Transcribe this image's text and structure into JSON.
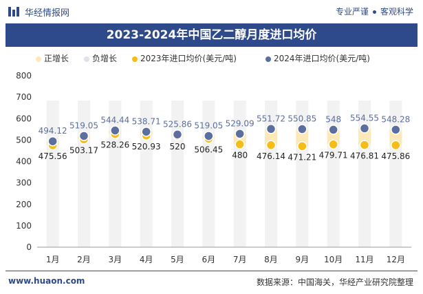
{
  "header": {
    "site_name": "华经情报网",
    "tag1": "专业严谨",
    "tag2": "客观科学"
  },
  "colors": {
    "brand": "#2e4a8a",
    "bar": "#f2f2f2",
    "pos": "#fde9b8",
    "y2023": "#f6bd16",
    "y2024": "#5b6e9e"
  },
  "chart_data": {
    "type": "line",
    "title": "2023-2024年中国乙二醇月度进口均价",
    "categories": [
      "1月",
      "2月",
      "3月",
      "4月",
      "5月",
      "6月",
      "7月",
      "8月",
      "9月",
      "10月",
      "11月",
      "12月"
    ],
    "series": [
      {
        "name": "2023年进口均价(美元/吨)",
        "values": [
          475.56,
          503.17,
          528.26,
          520.93,
          520,
          506.45,
          480,
          476.14,
          471.21,
          479.71,
          476.81,
          475.86
        ]
      },
      {
        "name": "2024年进口均价(美元/吨)",
        "values": [
          494.12,
          519.05,
          544.44,
          538.71,
          525.86,
          519.05,
          529.09,
          551.72,
          550.85,
          548,
          554.55,
          548.28
        ]
      }
    ],
    "legend": [
      "正增长",
      "负增长",
      "2023年进口均价(美元/吨)",
      "2024年进口均价(美元/吨)"
    ],
    "labels2023": [
      "475.56",
      "503.17",
      "528.26",
      "520.93",
      "520",
      "506.45",
      "480",
      "476.14",
      "471.21",
      "479.71",
      "476.81",
      "475.86"
    ],
    "labels2024": [
      "494.12",
      "519.05",
      "544.44",
      "538.71",
      "525.86",
      "519.05",
      "529.09",
      "551.72",
      "550.85",
      "548",
      "554.55",
      "548.28"
    ],
    "yticks": [
      "0",
      "100",
      "200",
      "300",
      "400",
      "500",
      "600",
      "700",
      "800"
    ],
    "ylim": [
      0,
      800
    ],
    "legend_position": "top",
    "grid": false
  },
  "footer": {
    "website": "www.huaon.com",
    "source": "数据来源：中国海关，华经产业研究院整理"
  }
}
